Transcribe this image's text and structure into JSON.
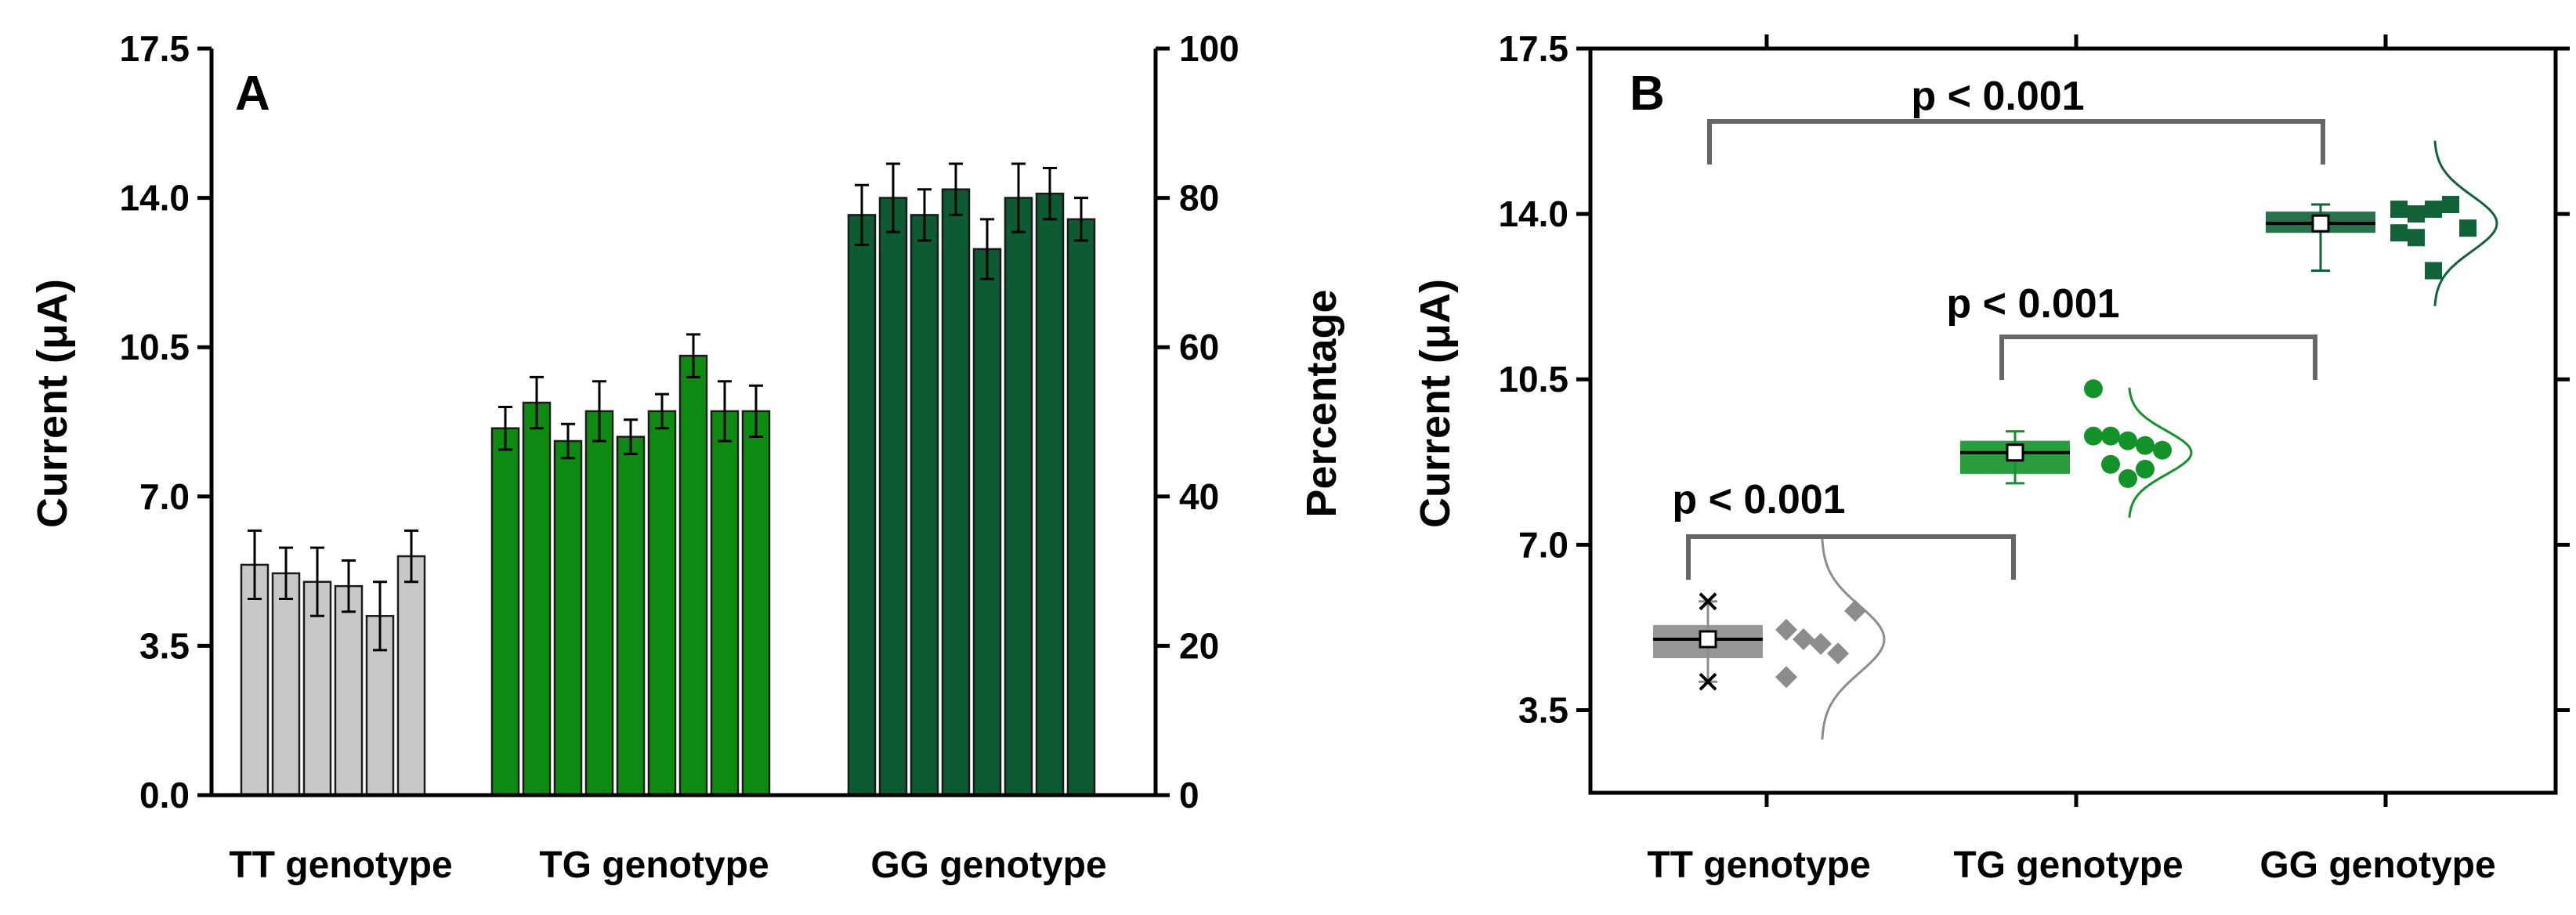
{
  "chart_data": [
    {
      "panel": "A",
      "type": "bar",
      "ylabel": "Current (μA)",
      "y2label": "Percentage",
      "ylim": [
        0,
        17.5
      ],
      "yticks": [
        "0.0",
        "3.5",
        "7.0",
        "10.5",
        "14.0",
        "17.5"
      ],
      "y2lim": [
        0,
        100
      ],
      "y2ticks": [
        "0",
        "20",
        "40",
        "60",
        "80",
        "100"
      ],
      "groups": [
        {
          "label": "TT genotype",
          "color": "#c8c8c8",
          "values": [
            5.4,
            5.2,
            5.0,
            4.9,
            4.2,
            5.6
          ],
          "errors": [
            0.8,
            0.6,
            0.8,
            0.6,
            0.8,
            0.6
          ]
        },
        {
          "label": "TG genotype",
          "color": "#0e8a12",
          "values": [
            8.6,
            9.2,
            8.3,
            9.0,
            8.4,
            9.0,
            10.3,
            9.0,
            9.0
          ],
          "errors": [
            0.5,
            0.6,
            0.4,
            0.7,
            0.4,
            0.4,
            0.5,
            0.7,
            0.6
          ]
        },
        {
          "label": "GG genotype",
          "color": "#0d5a33",
          "values": [
            13.6,
            14.0,
            13.6,
            14.2,
            12.8,
            14.0,
            14.1,
            13.5
          ],
          "errors": [
            0.7,
            0.8,
            0.6,
            0.6,
            0.7,
            0.8,
            0.6,
            0.5
          ]
        }
      ]
    },
    {
      "panel": "B",
      "type": "scatter",
      "ylabel": "Current (μA)",
      "ylim": [
        1.75,
        17.5
      ],
      "yticks": [
        "3.5",
        "7.0",
        "10.5",
        "14.0",
        "17.5"
      ],
      "categories": [
        "TT genotype",
        "TG genotype",
        "GG genotype"
      ],
      "series": [
        {
          "name": "TT genotype",
          "color": "#8c8c8c",
          "marker": "diamond",
          "mean": 5.0,
          "box": [
            4.6,
            5.3
          ],
          "whisker": [
            4.1,
            5.8
          ],
          "points": [
            5.2,
            5.0,
            4.9,
            4.7,
            5.6,
            4.2
          ]
        },
        {
          "name": "TG genotype",
          "color": "#13922a",
          "marker": "circle",
          "mean": 8.95,
          "box": [
            8.5,
            9.2
          ],
          "whisker": [
            8.3,
            9.4
          ],
          "points": [
            10.3,
            9.3,
            9.2,
            9.1,
            9.0,
            9.3,
            8.7,
            8.4,
            8.6
          ]
        },
        {
          "name": "GG genotype",
          "color": "#116238",
          "marker": "square",
          "mean": 13.8,
          "box": [
            13.6,
            14.05
          ],
          "whisker": [
            12.8,
            14.2
          ],
          "points": [
            14.1,
            14.0,
            14.1,
            14.2,
            13.7,
            13.6,
            13.5,
            12.8
          ]
        }
      ],
      "annotations": [
        {
          "text": "p < 0.001",
          "from": "TT genotype",
          "to": "GG genotype"
        },
        {
          "text": "p < 0.001",
          "from": "TG genotype",
          "to": "GG genotype"
        },
        {
          "text": "p < 0.001",
          "from": "TT genotype",
          "to": "TG genotype"
        }
      ]
    }
  ]
}
